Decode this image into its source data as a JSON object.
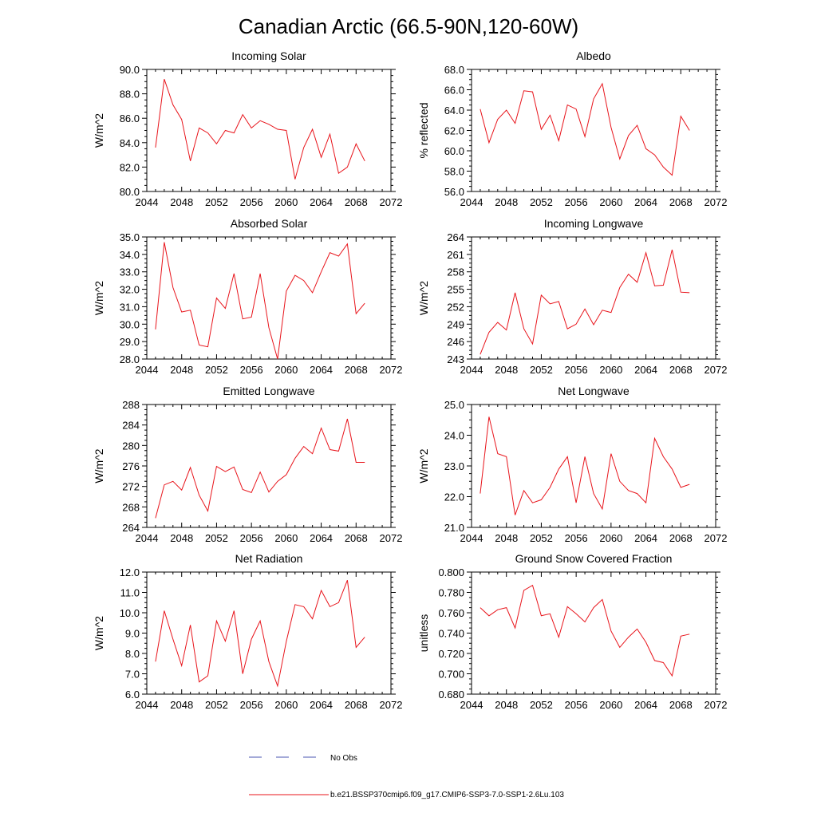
{
  "title": "Canadian Arctic (66.5-90N,120-60W)",
  "colors": {
    "model_line": "#e8141b",
    "obs_line": "#4a54b0",
    "axis": "#000000"
  },
  "legend": {
    "obs_label": "No Obs",
    "model_label": "b.e21.BSSP370cmip6.f09_g17.CMIP6-SSP3-7.0-SSP1-2.6Lu.103"
  },
  "chart_data": [
    {
      "type": "line",
      "title": "Incoming Solar",
      "ylabel": "W/m^2",
      "xlim": [
        2044,
        2072
      ],
      "xticks": [
        2044,
        2048,
        2052,
        2056,
        2060,
        2064,
        2068,
        2072
      ],
      "ylim": [
        80,
        90
      ],
      "yticks": [
        80,
        82,
        84,
        86,
        88,
        90
      ],
      "ydec": 1,
      "x": [
        2045,
        2046,
        2047,
        2048,
        2049,
        2050,
        2051,
        2052,
        2053,
        2054,
        2055,
        2056,
        2057,
        2058,
        2059,
        2060,
        2061,
        2062,
        2063,
        2064,
        2065,
        2066,
        2067,
        2068,
        2069
      ],
      "values": [
        83.6,
        89.2,
        87.1,
        85.9,
        82.5,
        85.2,
        84.8,
        83.9,
        85.0,
        84.8,
        86.3,
        85.2,
        85.8,
        85.5,
        85.1,
        85.0,
        81.0,
        83.6,
        85.1,
        82.8,
        84.7,
        81.5,
        82.0,
        83.9,
        82.5
      ]
    },
    {
      "type": "line",
      "title": "Albedo",
      "ylabel": "% reflected",
      "xlim": [
        2044,
        2072
      ],
      "xticks": [
        2044,
        2048,
        2052,
        2056,
        2060,
        2064,
        2068,
        2072
      ],
      "ylim": [
        56,
        68
      ],
      "yticks": [
        56,
        58,
        60,
        62,
        64,
        66,
        68
      ],
      "ydec": 1,
      "x": [
        2045,
        2046,
        2047,
        2048,
        2049,
        2050,
        2051,
        2052,
        2053,
        2054,
        2055,
        2056,
        2057,
        2058,
        2059,
        2060,
        2061,
        2062,
        2063,
        2064,
        2065,
        2066,
        2067,
        2068,
        2069
      ],
      "values": [
        64.1,
        60.8,
        63.1,
        64.0,
        62.7,
        65.9,
        65.8,
        62.1,
        63.5,
        61.0,
        64.5,
        64.1,
        61.4,
        65.1,
        66.6,
        62.3,
        59.2,
        61.5,
        62.5,
        60.2,
        59.6,
        58.4,
        57.6,
        63.4,
        62.0
      ]
    },
    {
      "type": "line",
      "title": "Absorbed Solar",
      "ylabel": "W/m^2",
      "xlim": [
        2044,
        2072
      ],
      "xticks": [
        2044,
        2048,
        2052,
        2056,
        2060,
        2064,
        2068,
        2072
      ],
      "ylim": [
        28,
        35
      ],
      "yticks": [
        28,
        29,
        30,
        31,
        32,
        33,
        34,
        35
      ],
      "ydec": 1,
      "x": [
        2045,
        2046,
        2047,
        2048,
        2049,
        2050,
        2051,
        2052,
        2053,
        2054,
        2055,
        2056,
        2057,
        2058,
        2059,
        2060,
        2061,
        2062,
        2063,
        2064,
        2065,
        2066,
        2067,
        2068,
        2069
      ],
      "values": [
        29.7,
        34.7,
        32.1,
        30.7,
        30.8,
        28.8,
        28.7,
        31.5,
        30.9,
        32.9,
        30.3,
        30.4,
        32.9,
        29.8,
        28.0,
        31.9,
        32.8,
        32.5,
        31.8,
        33.0,
        34.1,
        33.9,
        34.6,
        30.6,
        31.2
      ]
    },
    {
      "type": "line",
      "title": "Incoming Longwave",
      "ylabel": "W/m^2",
      "xlim": [
        2044,
        2072
      ],
      "xticks": [
        2044,
        2048,
        2052,
        2056,
        2060,
        2064,
        2068,
        2072
      ],
      "ylim": [
        243,
        264
      ],
      "yticks": [
        243,
        246,
        249,
        252,
        255,
        258,
        261,
        264
      ],
      "ydec": 0,
      "x": [
        2045,
        2046,
        2047,
        2048,
        2049,
        2050,
        2051,
        2052,
        2053,
        2054,
        2055,
        2056,
        2057,
        2058,
        2059,
        2060,
        2061,
        2062,
        2063,
        2064,
        2065,
        2066,
        2067,
        2068,
        2069
      ],
      "values": [
        243.8,
        247.6,
        249.3,
        248.0,
        254.4,
        248.2,
        245.6,
        254.0,
        252.5,
        252.9,
        248.2,
        249.0,
        251.6,
        248.9,
        251.4,
        251.0,
        255.3,
        257.6,
        256.2,
        261.3,
        255.6,
        255.7,
        261.8,
        254.5,
        254.4
      ]
    },
    {
      "type": "line",
      "title": "Emitted Longwave",
      "ylabel": "W/m^2",
      "xlim": [
        2044,
        2072
      ],
      "xticks": [
        2044,
        2048,
        2052,
        2056,
        2060,
        2064,
        2068,
        2072
      ],
      "ylim": [
        264,
        288
      ],
      "yticks": [
        264,
        268,
        272,
        276,
        280,
        284,
        288
      ],
      "ydec": 0,
      "x": [
        2045,
        2046,
        2047,
        2048,
        2049,
        2050,
        2051,
        2052,
        2053,
        2054,
        2055,
        2056,
        2057,
        2058,
        2059,
        2060,
        2061,
        2062,
        2063,
        2064,
        2065,
        2066,
        2067,
        2068,
        2069
      ],
      "values": [
        265.8,
        272.3,
        273.0,
        271.3,
        275.7,
        270.3,
        267.2,
        275.9,
        274.9,
        275.8,
        271.4,
        270.8,
        274.8,
        270.9,
        273.0,
        274.3,
        277.5,
        279.8,
        278.4,
        283.4,
        279.2,
        278.9,
        285.2,
        276.7,
        276.7
      ]
    },
    {
      "type": "line",
      "title": "Net Longwave",
      "ylabel": "W/m^2",
      "xlim": [
        2044,
        2072
      ],
      "xticks": [
        2044,
        2048,
        2052,
        2056,
        2060,
        2064,
        2068,
        2072
      ],
      "ylim": [
        21,
        25
      ],
      "yticks": [
        21,
        22,
        23,
        24,
        25
      ],
      "ydec": 1,
      "x": [
        2045,
        2046,
        2047,
        2048,
        2049,
        2050,
        2051,
        2052,
        2053,
        2054,
        2055,
        2056,
        2057,
        2058,
        2059,
        2060,
        2061,
        2062,
        2063,
        2064,
        2065,
        2066,
        2067,
        2068,
        2069
      ],
      "values": [
        22.1,
        24.6,
        23.4,
        23.3,
        21.4,
        22.2,
        21.8,
        21.9,
        22.3,
        22.9,
        23.3,
        21.8,
        23.3,
        22.1,
        21.6,
        23.4,
        22.5,
        22.2,
        22.1,
        21.8,
        23.9,
        23.3,
        22.9,
        22.3,
        22.4
      ]
    },
    {
      "type": "line",
      "title": "Net Radiation",
      "ylabel": "W/m^2",
      "xlim": [
        2044,
        2072
      ],
      "xticks": [
        2044,
        2048,
        2052,
        2056,
        2060,
        2064,
        2068,
        2072
      ],
      "ylim": [
        6,
        12
      ],
      "yticks": [
        6,
        7,
        8,
        9,
        10,
        11,
        12
      ],
      "ydec": 1,
      "x": [
        2045,
        2046,
        2047,
        2048,
        2049,
        2050,
        2051,
        2052,
        2053,
        2054,
        2055,
        2056,
        2057,
        2058,
        2059,
        2060,
        2061,
        2062,
        2063,
        2064,
        2065,
        2066,
        2067,
        2068,
        2069
      ],
      "values": [
        7.6,
        10.1,
        8.7,
        7.4,
        9.4,
        6.6,
        6.9,
        9.6,
        8.6,
        10.1,
        7.0,
        8.7,
        9.6,
        7.6,
        6.4,
        8.6,
        10.4,
        10.3,
        9.7,
        11.1,
        10.3,
        10.5,
        11.6,
        8.3,
        8.8
      ]
    },
    {
      "type": "line",
      "title": "Ground Snow Covered Fraction",
      "ylabel": "unitless",
      "xlim": [
        2044,
        2072
      ],
      "xticks": [
        2044,
        2048,
        2052,
        2056,
        2060,
        2064,
        2068,
        2072
      ],
      "ylim": [
        0.68,
        0.8
      ],
      "yticks": [
        0.68,
        0.7,
        0.72,
        0.74,
        0.76,
        0.78,
        0.8
      ],
      "ydec": 3,
      "x": [
        2045,
        2046,
        2047,
        2048,
        2049,
        2050,
        2051,
        2052,
        2053,
        2054,
        2055,
        2056,
        2057,
        2058,
        2059,
        2060,
        2061,
        2062,
        2063,
        2064,
        2065,
        2066,
        2067,
        2068,
        2069
      ],
      "values": [
        0.765,
        0.757,
        0.763,
        0.765,
        0.745,
        0.782,
        0.787,
        0.757,
        0.759,
        0.736,
        0.766,
        0.759,
        0.751,
        0.765,
        0.773,
        0.742,
        0.726,
        0.736,
        0.744,
        0.731,
        0.713,
        0.711,
        0.698,
        0.737,
        0.739
      ]
    }
  ]
}
